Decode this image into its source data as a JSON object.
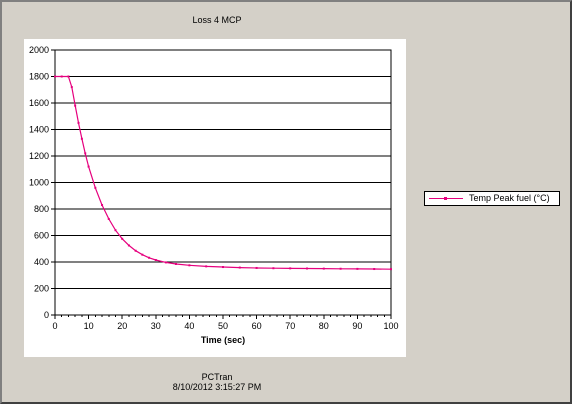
{
  "chart_data": {
    "type": "line",
    "title": "Loss 4 MCP",
    "xlabel": "Time (sec)",
    "ylabel": "",
    "xlim": [
      0,
      100
    ],
    "ylim": [
      0,
      2000
    ],
    "xticks": [
      "0",
      "10",
      "20",
      "30",
      "40",
      "50",
      "60",
      "70",
      "80",
      "90",
      "100"
    ],
    "yticks": [
      "0",
      "200",
      "400",
      "600",
      "800",
      "1000",
      "1200",
      "1400",
      "1600",
      "1800",
      "2000"
    ],
    "grid": "horizontal",
    "legend_position": "right",
    "series": [
      {
        "name": "Temp Peak fuel (°C)",
        "color": "#e6007e",
        "x": [
          0,
          2,
          4,
          5,
          6,
          7,
          8,
          9,
          10,
          12,
          14,
          16,
          18,
          20,
          22,
          24,
          26,
          28,
          30,
          33,
          36,
          40,
          45,
          50,
          55,
          60,
          65,
          70,
          75,
          80,
          85,
          90,
          95,
          100
        ],
        "y": [
          1800,
          1800,
          1800,
          1720,
          1580,
          1450,
          1330,
          1220,
          1120,
          960,
          830,
          725,
          640,
          575,
          525,
          485,
          455,
          432,
          415,
          397,
          385,
          375,
          367,
          362,
          358,
          355,
          353,
          352,
          351,
          350,
          349,
          348,
          347,
          346
        ]
      }
    ]
  },
  "footer": {
    "line1": "PCTran",
    "line2": "8/10/2012 3:15:27 PM"
  }
}
